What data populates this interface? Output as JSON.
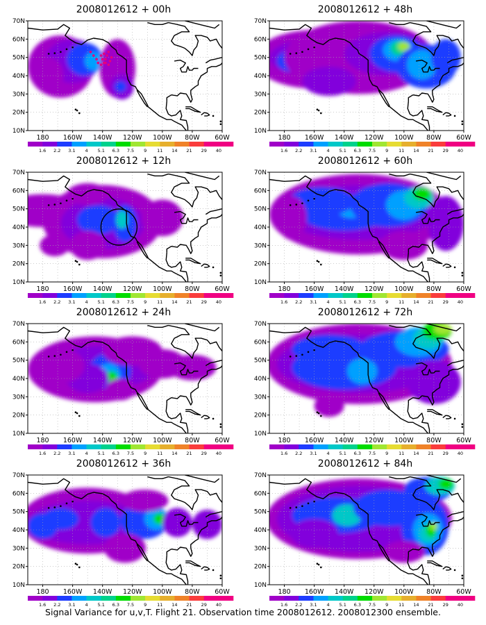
{
  "colors": {
    "land_outline": "#000000",
    "grid": "#aaaaaa",
    "levels": [
      "#a000c8",
      "#8200dc",
      "#1e3cff",
      "#00a0ff",
      "#00c8c8",
      "#00d28c",
      "#00dc00",
      "#a0e632",
      "#e6dc32",
      "#e6af2d",
      "#f08228",
      "#fa3c3c",
      "#f00082"
    ]
  },
  "axes": {
    "lat_labels": [
      "70N",
      "60N",
      "50N",
      "40N",
      "30N",
      "20N",
      "10N"
    ],
    "lon_labels": [
      "180",
      "160W",
      "140W",
      "120W",
      "100W",
      "80W",
      "60W"
    ]
  },
  "colorbar": {
    "labels": [
      "1.6",
      "2.2",
      "3.1",
      "4",
      "5.1",
      "6.3",
      "7.5",
      "9",
      "11",
      "14",
      "21",
      "29",
      "40"
    ]
  },
  "panels": [
    {
      "title": "2008012612 + 00h",
      "forecast_hour": 0,
      "features": [
        "flight-track-dots"
      ]
    },
    {
      "title": "2008012612 + 48h",
      "forecast_hour": 48,
      "features": []
    },
    {
      "title": "2008012612 + 12h",
      "forecast_hour": 12,
      "features": [
        "verification-circle"
      ]
    },
    {
      "title": "2008012612 + 60h",
      "forecast_hour": 60,
      "features": []
    },
    {
      "title": "2008012612 + 24h",
      "forecast_hour": 24,
      "features": []
    },
    {
      "title": "2008012612 + 72h",
      "forecast_hour": 72,
      "features": []
    },
    {
      "title": "2008012612 + 36h",
      "forecast_hour": 36,
      "features": []
    },
    {
      "title": "2008012612 + 84h",
      "forecast_hour": 84,
      "features": []
    }
  ],
  "caption": "Signal Variance for u,v,T. Flight 21. Observation time 2008012612. 2008012300 ensemble."
}
